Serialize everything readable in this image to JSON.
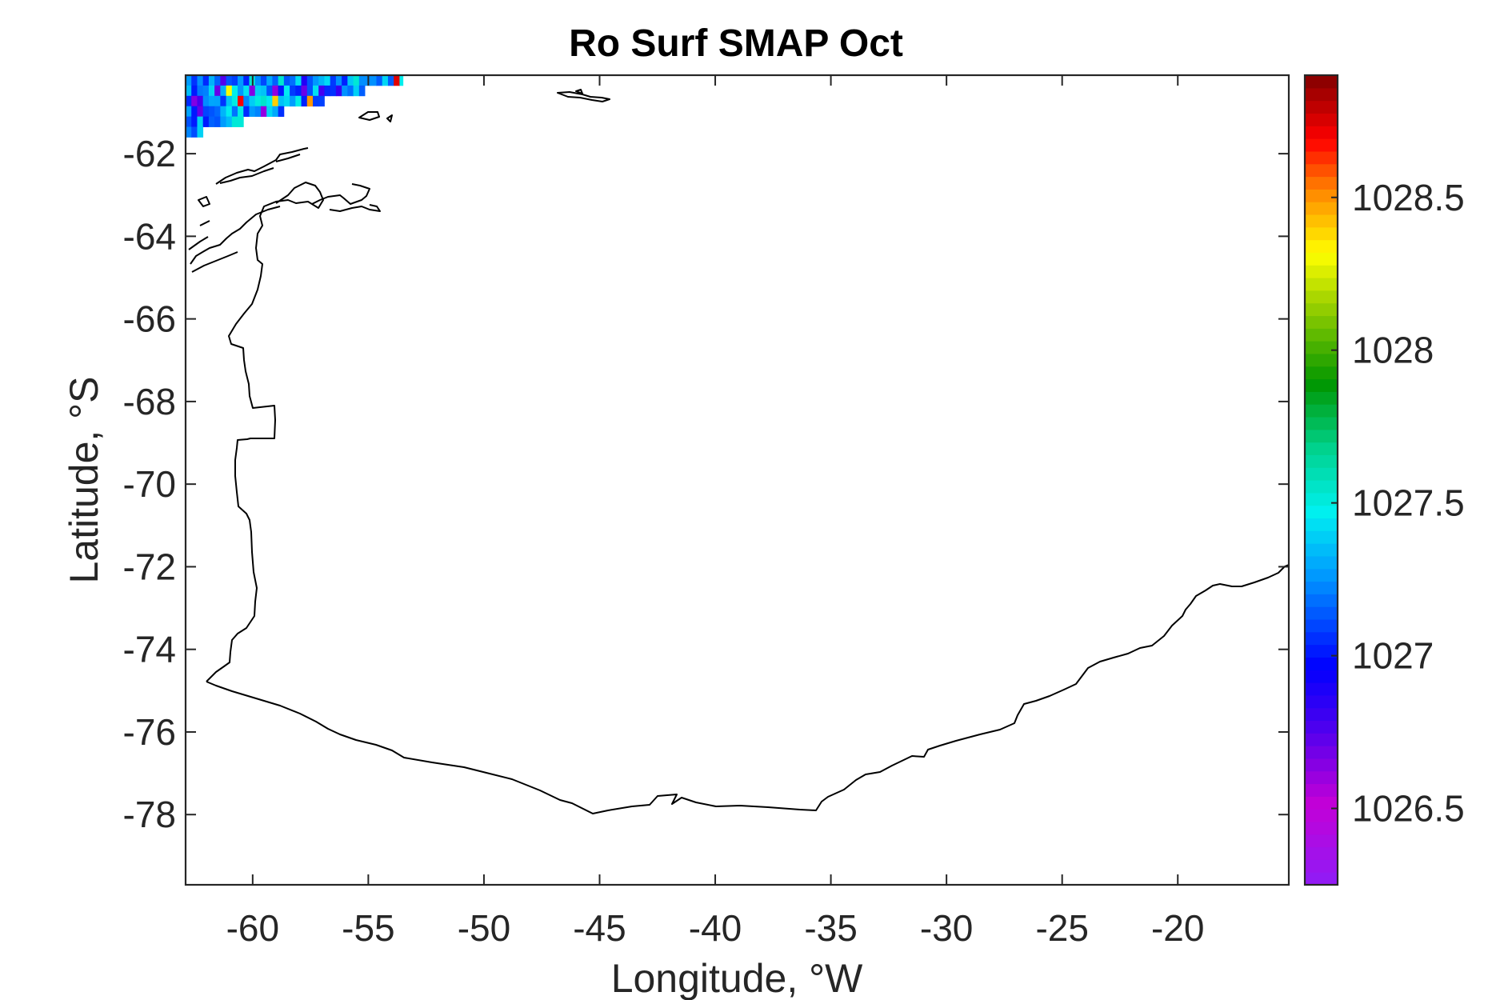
{
  "chart_data": {
    "type": "heatmap",
    "title": "Ro Surf SMAP Oct",
    "xlabel": "Longitude, °W",
    "ylabel": "Latitude, °S",
    "xlim": [
      -62.9,
      -15.2
    ],
    "ylim": [
      -79.7,
      -60.1
    ],
    "x_ticks": [
      -60,
      -55,
      -50,
      -45,
      -40,
      -35,
      -30,
      -25,
      -20
    ],
    "x_tick_labels": [
      "-60",
      "-55",
      "-50",
      "-45",
      "-40",
      "-35",
      "-30",
      "-25",
      "-20"
    ],
    "y_ticks": [
      -62,
      -64,
      -66,
      -68,
      -70,
      -72,
      -74,
      -76,
      -78
    ],
    "y_tick_labels": [
      "-62",
      "-64",
      "-66",
      "-68",
      "-70",
      "-72",
      "-74",
      "-76",
      "-78"
    ],
    "colorbar": {
      "colormap": "jet-like (purple-blue-cyan-green-yellow-red-darkred)",
      "clim": [
        1026.25,
        1028.9
      ],
      "ticks": [
        1026.5,
        1027,
        1027.5,
        1028,
        1028.5
      ],
      "tick_labels": [
        "1026.5",
        "1027",
        "1027.5",
        "1028",
        "1028.5"
      ]
    },
    "heatmap_region": {
      "lon_range": [
        -62.9,
        -53.5
      ],
      "lat_range": [
        -61.7,
        -60.1
      ],
      "value_range": [
        1026.5,
        1028.8
      ],
      "dominant_values": "mostly 1027.0–1027.5"
    },
    "grid": false,
    "legend": "none"
  }
}
